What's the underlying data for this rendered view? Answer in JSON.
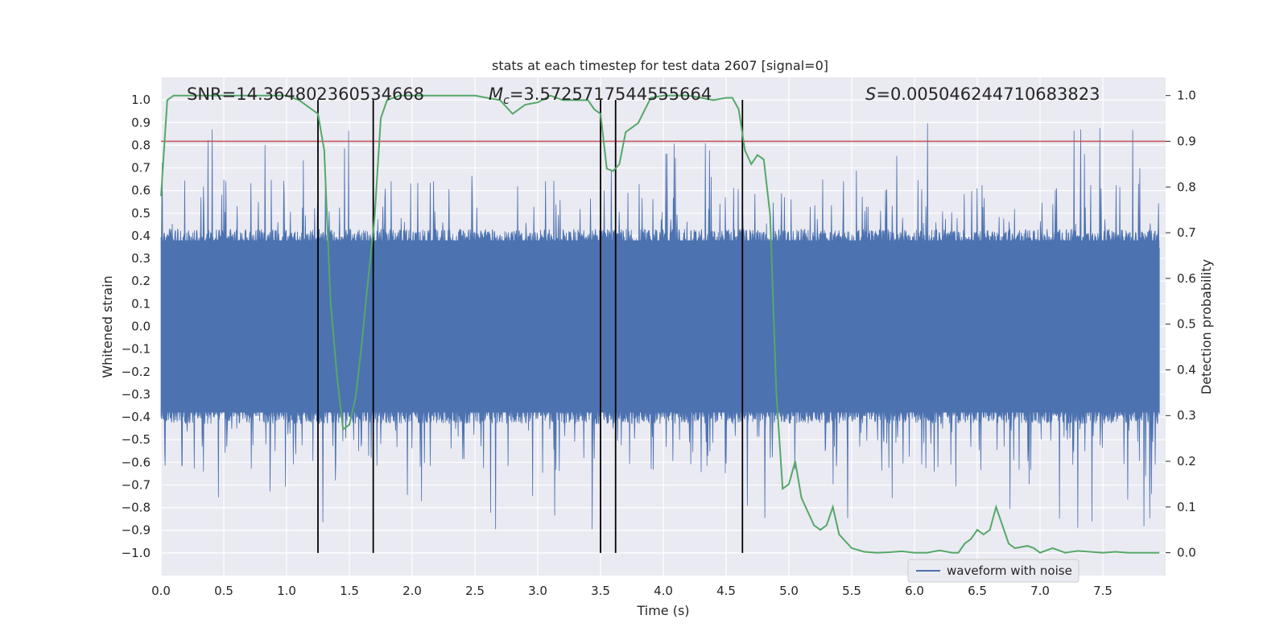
{
  "chart_data": {
    "type": "line",
    "title": "stats at each timestep for test data 2607 [signal=0]",
    "xlabel": "Time (s)",
    "ylabel_left": "Whitened strain",
    "ylabel_right": "Detection probability",
    "xlim": [
      0,
      8
    ],
    "ylim_left": [
      -1.1,
      1.1
    ],
    "ylim_right": [
      -0.05,
      1.04
    ],
    "xticks": [
      "0.0",
      "0.5",
      "1.0",
      "1.5",
      "2.0",
      "2.5",
      "3.0",
      "3.5",
      "4.0",
      "4.5",
      "5.0",
      "5.5",
      "6.0",
      "6.5",
      "7.0",
      "7.5"
    ],
    "yticks_left": [
      "1.0",
      "0.9",
      "0.8",
      "0.7",
      "0.6",
      "0.5",
      "0.4",
      "0.3",
      "0.2",
      "0.1",
      "0.0",
      "-0.1",
      "-0.2",
      "-0.3",
      "-0.4",
      "-0.5",
      "-0.6",
      "-0.7",
      "-0.8",
      "-0.9",
      "-1.0"
    ],
    "yticks_right": [
      "1.0",
      "0.9",
      "0.8",
      "0.7",
      "0.6",
      "0.5",
      "0.4",
      "0.3",
      "0.2",
      "0.1",
      "0.0"
    ],
    "annotations": {
      "snr": "SNR=14.364802360534668",
      "mc_symbol": "M",
      "mc_sub": "c",
      "mc_value": "=3.5725717544555664",
      "s_symbol": "S",
      "s_value": "=0.005046244710683823"
    },
    "threshold_line": {
      "value": 0.9,
      "axis": "right",
      "color": "#c44e52"
    },
    "vertical_markers": [
      1.25,
      1.69,
      3.5,
      3.62,
      4.63
    ],
    "series": [
      {
        "name": "waveform with noise",
        "axis": "left",
        "color": "#4c72b0",
        "description": "dense noise waveform, core amplitude about ±0.4, spikes up to about ±0.9"
      },
      {
        "name": "detection probability",
        "axis": "right",
        "color": "#55a868",
        "x": [
          0.0,
          0.05,
          0.1,
          0.2,
          0.5,
          0.8,
          1.0,
          1.1,
          1.2,
          1.25,
          1.3,
          1.35,
          1.4,
          1.45,
          1.5,
          1.55,
          1.6,
          1.65,
          1.7,
          1.75,
          1.8,
          1.9,
          2.0,
          2.5,
          2.7,
          2.8,
          2.9,
          3.0,
          3.1,
          3.2,
          3.3,
          3.4,
          3.45,
          3.5,
          3.55,
          3.6,
          3.65,
          3.7,
          3.8,
          3.9,
          4.0,
          4.2,
          4.4,
          4.5,
          4.55,
          4.6,
          4.65,
          4.7,
          4.75,
          4.8,
          4.85,
          4.9,
          4.95,
          5.0,
          5.05,
          5.1,
          5.2,
          5.25,
          5.3,
          5.35,
          5.4,
          5.5,
          5.6,
          5.7,
          5.8,
          5.9,
          6.0,
          6.1,
          6.2,
          6.3,
          6.35,
          6.4,
          6.45,
          6.5,
          6.55,
          6.6,
          6.65,
          6.7,
          6.75,
          6.8,
          6.9,
          6.95,
          7.0,
          7.1,
          7.2,
          7.3,
          7.5,
          7.6,
          7.7,
          7.8,
          7.95
        ],
        "y": [
          0.78,
          0.99,
          1.0,
          1.0,
          1.0,
          1.0,
          1.0,
          0.99,
          0.97,
          0.96,
          0.88,
          0.55,
          0.39,
          0.27,
          0.28,
          0.34,
          0.46,
          0.6,
          0.73,
          0.95,
          0.99,
          1.0,
          1.0,
          1.0,
          0.99,
          0.96,
          0.98,
          0.985,
          1.0,
          0.99,
          0.99,
          0.99,
          0.97,
          0.96,
          0.84,
          0.835,
          0.85,
          0.92,
          0.94,
          0.995,
          1.0,
          1.0,
          0.99,
          0.995,
          0.995,
          0.97,
          0.88,
          0.85,
          0.87,
          0.86,
          0.74,
          0.35,
          0.14,
          0.15,
          0.2,
          0.12,
          0.06,
          0.05,
          0.06,
          0.1,
          0.04,
          0.01,
          0.002,
          0.0,
          0.001,
          0.003,
          0.0,
          0.0,
          0.005,
          0.0,
          0.0,
          0.02,
          0.03,
          0.05,
          0.04,
          0.05,
          0.1,
          0.06,
          0.02,
          0.01,
          0.015,
          0.01,
          0.0,
          0.01,
          0.0,
          0.004,
          0.0,
          0.002,
          0.0,
          0.0,
          0.0
        ]
      }
    ],
    "legend": {
      "placement": "bottom-right",
      "entries": [
        "waveform with noise"
      ]
    }
  }
}
